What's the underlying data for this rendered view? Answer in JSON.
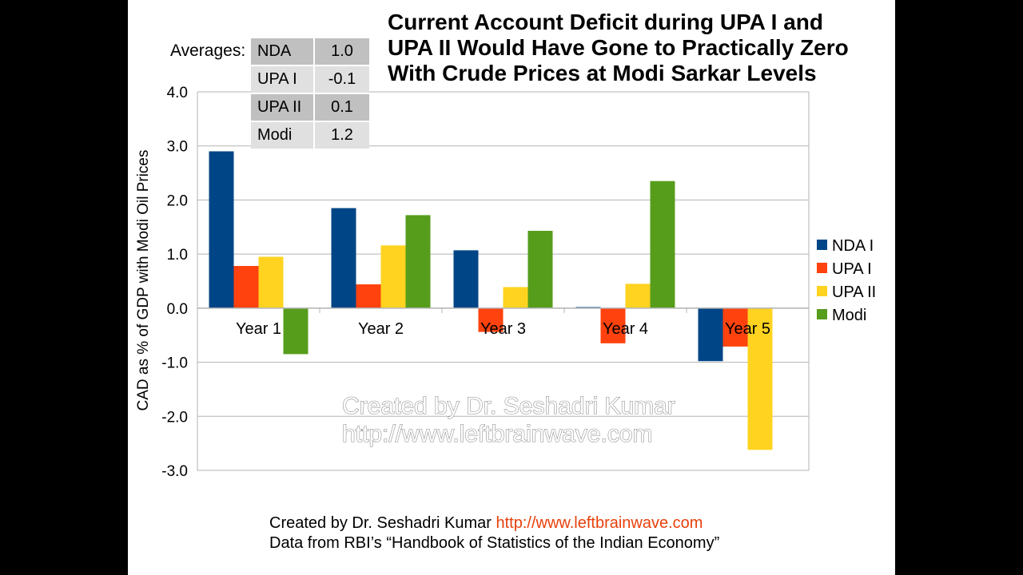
{
  "title": "Current Account Deficit during UPA I and\nUPA II Would Have Gone to Practically Zero\nWith Crude Prices at Modi Sarkar Levels",
  "averages": {
    "label": "Averages:",
    "rows": [
      {
        "name": "NDA",
        "value": "1.0"
      },
      {
        "name": "UPA I",
        "value": "-0.1"
      },
      {
        "name": "UPA II",
        "value": "0.1"
      },
      {
        "name": "Modi",
        "value": "1.2"
      }
    ]
  },
  "watermark": {
    "line1": "Created by Dr. Seshadri Kumar",
    "line2": "http://www.leftbrainwave.com"
  },
  "footer": {
    "credit": "Created by Dr. Seshadri Kumar",
    "link": "http://www.leftbrainwave.com",
    "source": "Data from RBI’s “Handbook of Statistics of the Indian Economy”"
  },
  "chart_data": {
    "type": "bar",
    "ylabel": "CAD as % of GDP with Modi Oil Prices",
    "ylim": [
      -3.0,
      4.0
    ],
    "yticks": [
      4.0,
      3.0,
      2.0,
      1.0,
      0.0,
      -1.0,
      -2.0,
      -3.0
    ],
    "ytick_labels": [
      "4.0",
      "3.0",
      "2.0",
      "1.0",
      "0.0",
      "-1.0",
      "-2.0",
      "-3.0"
    ],
    "grid": true,
    "legend_position": "right",
    "categories": [
      "Year 1",
      "Year 2",
      "Year 3",
      "Year 4",
      "Year 5"
    ],
    "series": [
      {
        "name": "NDA I",
        "color": "#004586",
        "values": [
          2.9,
          1.85,
          1.07,
          0.02,
          -0.98
        ]
      },
      {
        "name": "UPA I",
        "color": "#ff420e",
        "values": [
          0.78,
          0.44,
          -0.44,
          -0.65,
          -0.71
        ]
      },
      {
        "name": "UPA II",
        "color": "#ffd320",
        "values": [
          0.95,
          1.16,
          0.39,
          0.45,
          -2.62
        ]
      },
      {
        "name": "Modi",
        "color": "#579d1c",
        "values": [
          -0.85,
          1.72,
          1.43,
          2.35,
          0.0
        ]
      }
    ]
  }
}
